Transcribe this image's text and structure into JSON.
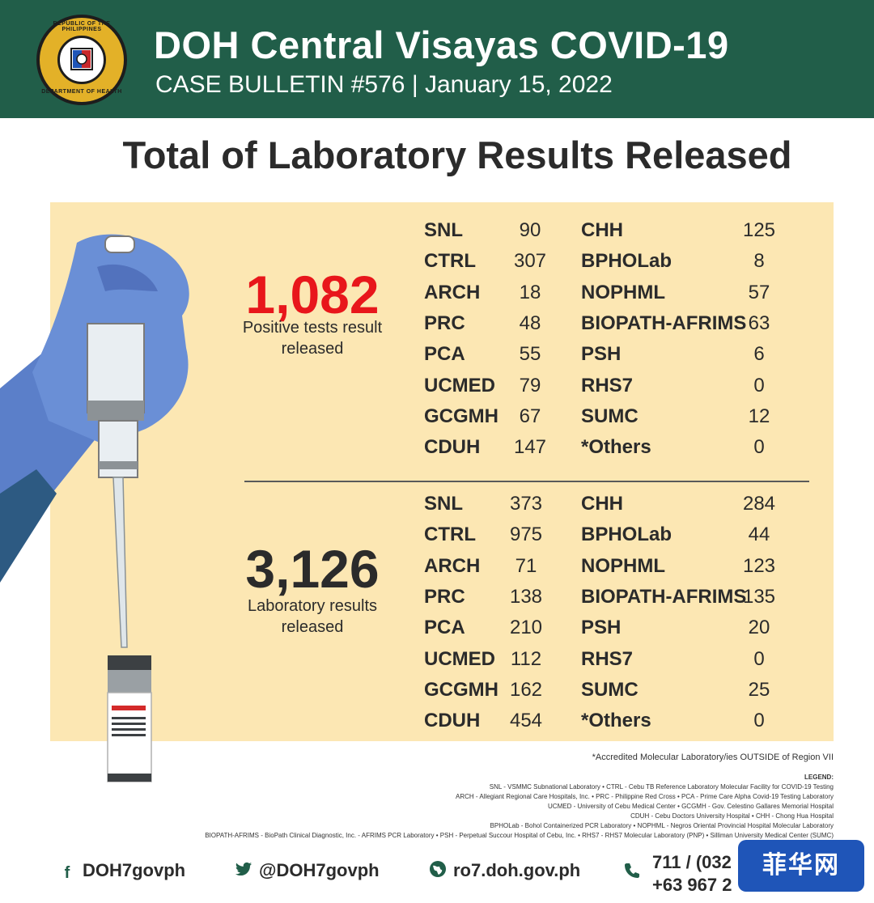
{
  "header": {
    "title": "DOH Central Visayas COVID-19",
    "subtitle": "CASE BULLETIN #576 | January 15, 2022",
    "seal_top_text": "REPUBLIC OF THE PHILIPPINES",
    "seal_bottom_text": "DEPARTMENT OF HEALTH"
  },
  "main_heading": "Total of Laboratory Results Released",
  "positive": {
    "total": "1,082",
    "caption_line1": "Positive tests result",
    "caption_line2": "released",
    "left": [
      {
        "lab": "SNL",
        "value": "90"
      },
      {
        "lab": "CTRL",
        "value": "307"
      },
      {
        "lab": "ARCH",
        "value": "18"
      },
      {
        "lab": "PRC",
        "value": "48"
      },
      {
        "lab": "PCA",
        "value": "55"
      },
      {
        "lab": "UCMED",
        "value": "79"
      },
      {
        "lab": "GCGMH",
        "value": "67"
      },
      {
        "lab": "CDUH",
        "value": "147"
      }
    ],
    "right": [
      {
        "lab": "CHH",
        "value": "125"
      },
      {
        "lab": "BPHOLab",
        "value": "8"
      },
      {
        "lab": "NOPHML",
        "value": "57"
      },
      {
        "lab": "BIOPATH-AFRIMS",
        "value": "63"
      },
      {
        "lab": "PSH",
        "value": "6"
      },
      {
        "lab": "RHS7",
        "value": "0"
      },
      {
        "lab": "SUMC",
        "value": "12"
      },
      {
        "lab": "*Others",
        "value": "0"
      }
    ]
  },
  "results": {
    "total": "3,126",
    "caption_line1": "Laboratory results",
    "caption_line2": "released",
    "left": [
      {
        "lab": "SNL",
        "value": "373"
      },
      {
        "lab": "CTRL",
        "value": "975"
      },
      {
        "lab": "ARCH",
        "value": "71"
      },
      {
        "lab": "PRC",
        "value": "138"
      },
      {
        "lab": "PCA",
        "value": "210"
      },
      {
        "lab": "UCMED",
        "value": "112"
      },
      {
        "lab": "GCGMH",
        "value": "162"
      },
      {
        "lab": "CDUH",
        "value": "454"
      }
    ],
    "right": [
      {
        "lab": "CHH",
        "value": "284"
      },
      {
        "lab": "BPHOLab",
        "value": "44"
      },
      {
        "lab": "NOPHML",
        "value": "123"
      },
      {
        "lab": "BIOPATH-AFRIMS",
        "value": "135"
      },
      {
        "lab": "PSH",
        "value": "20"
      },
      {
        "lab": "RHS7",
        "value": "0"
      },
      {
        "lab": "SUMC",
        "value": "25"
      },
      {
        "lab": "*Others",
        "value": "0"
      }
    ]
  },
  "footnote": "*Accredited Molecular Laboratory/ies OUTSIDE of Region VII",
  "legend": {
    "heading": "LEGEND:",
    "lines": [
      "SNL - VSMMC Subnational Laboratory • CTRL - Cebu TB Reference Laboratory Molecular Facility for COVID-19 Testing",
      "ARCH - Allegiant Regional Care Hospitals, Inc. • PRC - Philippine Red Cross • PCA - Prime Care Alpha Covid-19 Testing Laboratory",
      "UCMED - University of Cebu Medical Center • GCGMH - Gov. Celestino Gallares Memorial Hospital",
      "CDUH - Cebu Doctors University Hospital • CHH - Chong Hua Hospital",
      "BPHOLab - Bohol Containerized PCR Laboratory • NOPHML - Negros Oriental Provincial Hospital Molecular Laboratory",
      "BIOPATH-AFRIMS - BioPath Clinical Diagnostic, Inc. - AFRIMS PCR Laboratory • PSH - Perpetual Succour Hospital of Cebu, Inc. • RHS7 - RHS7 Molecular Laboratory (PNP) • Silliman University Medical Center (SUMC)"
    ]
  },
  "footer": {
    "facebook": "DOH7govph",
    "twitter": "@DOH7govph",
    "website": "ro7.doh.gov.ph",
    "phone_line1": "711 / (032",
    "phone_line2": "+63 967 2"
  },
  "watermark": "菲华网",
  "colors": {
    "header_bg": "#215e49",
    "panel_bg": "#fce7b3",
    "positive_red": "#e8161b",
    "glove_blue": "#5b7fc9"
  },
  "icons": {
    "facebook": "facebook-icon",
    "twitter": "twitter-icon",
    "website": "globe-icon",
    "phone": "phone-icon"
  }
}
